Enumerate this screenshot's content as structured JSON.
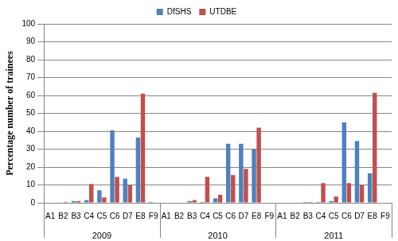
{
  "chart_data": {
    "type": "bar",
    "y_label": "Percentage number of trainees",
    "categories": [
      "A1",
      "B2",
      "B3",
      "C4",
      "C5",
      "C6",
      "D7",
      "E8",
      "F9",
      "A1",
      "B2",
      "B3",
      "C4",
      "C5",
      "C6",
      "D7",
      "E8",
      "F9",
      "A1",
      "B2",
      "B3",
      "C4",
      "C5",
      "C6",
      "D7",
      "E8",
      "F9"
    ],
    "groups": [
      {
        "label": "2009",
        "count": 9
      },
      {
        "label": "2010",
        "count": 9
      },
      {
        "label": "2011",
        "count": 9
      }
    ],
    "series": [
      {
        "name": "DfSHS",
        "color": "#4f81bd",
        "values": [
          0,
          0,
          1,
          1.5,
          7,
          40.5,
          13.5,
          36.5,
          0.5,
          0,
          0,
          1,
          0.5,
          2.5,
          33,
          33,
          30,
          0,
          0,
          0,
          0.5,
          0.5,
          1,
          45,
          34.5,
          16.5,
          0
        ]
      },
      {
        "name": "UTDBE",
        "color": "#c0504d",
        "values": [
          0,
          0.5,
          1,
          10.5,
          3,
          14.5,
          10,
          61,
          0,
          0,
          0,
          1.5,
          14.5,
          4.5,
          15.5,
          19,
          42,
          0,
          0,
          0,
          0.5,
          11,
          3.5,
          11,
          10,
          61.5,
          0
        ]
      }
    ],
    "ylim": [
      0,
      100
    ],
    "yticks": [
      0,
      10,
      20,
      30,
      40,
      50,
      60,
      70,
      80,
      90,
      100
    ],
    "grid": true,
    "legend": "top"
  }
}
